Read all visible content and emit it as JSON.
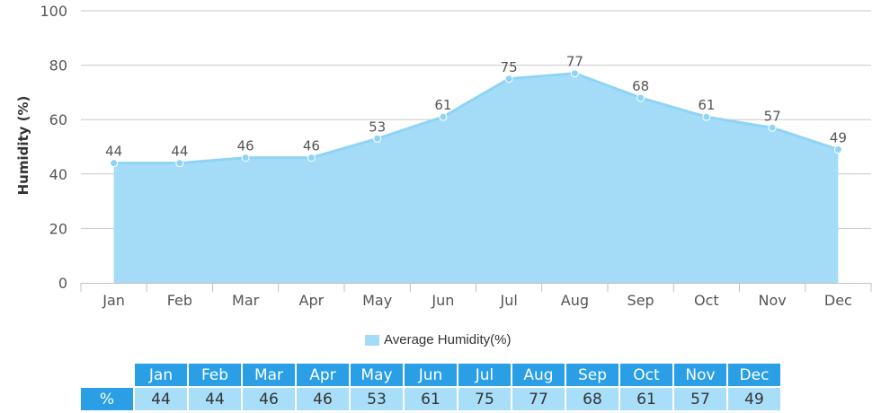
{
  "chart_data": {
    "type": "area",
    "categories": [
      "Jan",
      "Feb",
      "Mar",
      "Apr",
      "May",
      "Jun",
      "Jul",
      "Aug",
      "Sep",
      "Oct",
      "Nov",
      "Dec"
    ],
    "series": [
      {
        "name": "Average Humidity(%)",
        "values": [
          44,
          44,
          46,
          46,
          53,
          61,
          75,
          77,
          68,
          61,
          57,
          49
        ]
      }
    ],
    "ylabel": "Humidity (%)",
    "xlabel": "",
    "ylim": [
      0,
      100
    ],
    "yticks": [
      0,
      20,
      40,
      60,
      80,
      100
    ],
    "grid": true,
    "legend_position": "bottom-center",
    "colors": {
      "fill": "#a4dcf7",
      "line": "#8fd4f5",
      "point": "#8fd4f5"
    }
  },
  "legend": {
    "label": "Average Humidity(%)"
  },
  "table": {
    "row_header": "%",
    "months": [
      "Jan",
      "Feb",
      "Mar",
      "Apr",
      "May",
      "Jun",
      "Jul",
      "Aug",
      "Sep",
      "Oct",
      "Nov",
      "Dec"
    ],
    "values": [
      "44",
      "44",
      "46",
      "46",
      "53",
      "61",
      "75",
      "77",
      "68",
      "61",
      "57",
      "49"
    ]
  }
}
